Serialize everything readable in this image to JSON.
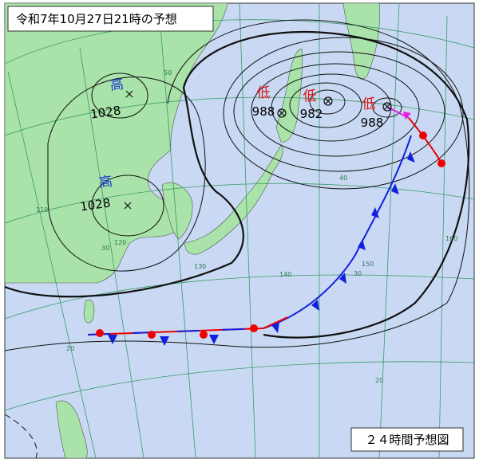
{
  "header": {
    "title": "令和7年10月27日21時の予想"
  },
  "footer": {
    "label": "２４時間予想図"
  },
  "systems": [
    {
      "kind": "高",
      "pressure": "1028"
    },
    {
      "kind": "高",
      "pressure": "1028"
    },
    {
      "kind": "低",
      "pressure": "988"
    },
    {
      "kind": "低",
      "pressure": "982"
    },
    {
      "kind": "低",
      "pressure": "988"
    }
  ],
  "grid_labels": [
    "50",
    "40",
    "30",
    "20",
    "20",
    "30",
    "110",
    "120",
    "130",
    "140",
    "150",
    "160"
  ]
}
